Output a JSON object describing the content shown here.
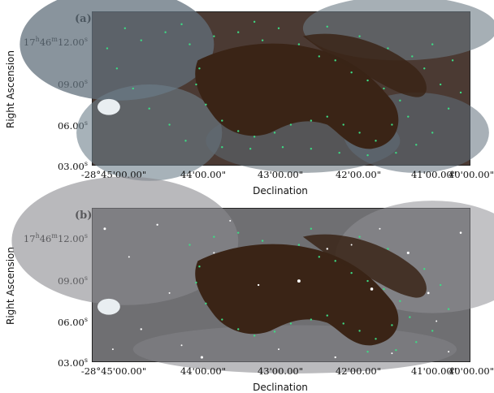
{
  "panels": [
    {
      "label": "(a)",
      "ylabel": "Right Ascension",
      "xlabel": "Declination",
      "yticks": [
        "17h46m12.00s",
        "09.00s",
        "06.00s",
        "03.00s"
      ],
      "xticks": [
        "-28°45'00.00\"",
        "44'00.00\"",
        "43'00.00\"",
        "42'00.00\"",
        "41'00.00\"",
        "40'00.00\""
      ]
    },
    {
      "label": "(b)",
      "ylabel": "Right Ascension",
      "xlabel": "Declination",
      "yticks": [
        "17h46m12.00s",
        "09.00s",
        "06.00s",
        "03.00s"
      ],
      "xticks": [
        "-28°45'00.00\"",
        "44'00.00\"",
        "43'00.00\"",
        "42'00.00\"",
        "41'00.00\"",
        "40'00.00\""
      ]
    }
  ],
  "ytick_html": {
    "first": {
      "hour": "17",
      "h": "h",
      "min": "46",
      "m": "m",
      "sec": "12.00",
      "s": "s"
    },
    "others": [
      {
        "val": "09.00",
        "s": "s"
      },
      {
        "val": "06.00",
        "s": "s"
      },
      {
        "val": "03.00",
        "s": "s"
      }
    ]
  },
  "colors": {
    "cloud_dark": "#3a2416",
    "nebula": "#6f7c86",
    "dust": "#5a4033",
    "marker": "#3ddc84",
    "star": "#ffffff"
  }
}
